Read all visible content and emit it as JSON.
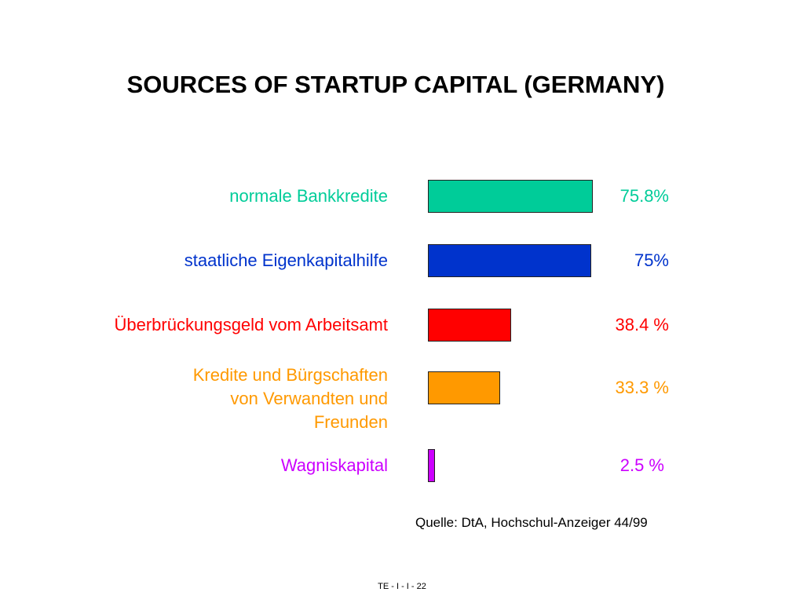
{
  "chart_data": {
    "type": "bar",
    "orientation": "horizontal",
    "title": "SOURCES OF STARTUP CAPITAL (GERMANY)",
    "categories": [
      "normale Bankkredite",
      "staatliche Eigenkapitalhilfe",
      "Überbrückungsgeld vom Arbeitsamt",
      "Kredite und Bürgschaften\nvon Verwandten und\nFreunden",
      "Wagniskapital"
    ],
    "values": [
      75.8,
      75,
      38.4,
      33.3,
      2.5
    ],
    "value_labels": [
      "75.8%",
      "75%",
      "38.4 %",
      "33.3 %",
      "2.5 %"
    ],
    "colors": [
      "#00cc99",
      "#0033cc",
      "#ff0000",
      "#ff9900",
      "#cc00ff"
    ],
    "xlim": [
      0,
      75.8
    ],
    "grid": false,
    "legend": "none",
    "xlabel": "",
    "ylabel": ""
  },
  "source": "Quelle: DtA, Hochschul-Anzeiger 44/99",
  "footer": "TE - I - I - 22"
}
